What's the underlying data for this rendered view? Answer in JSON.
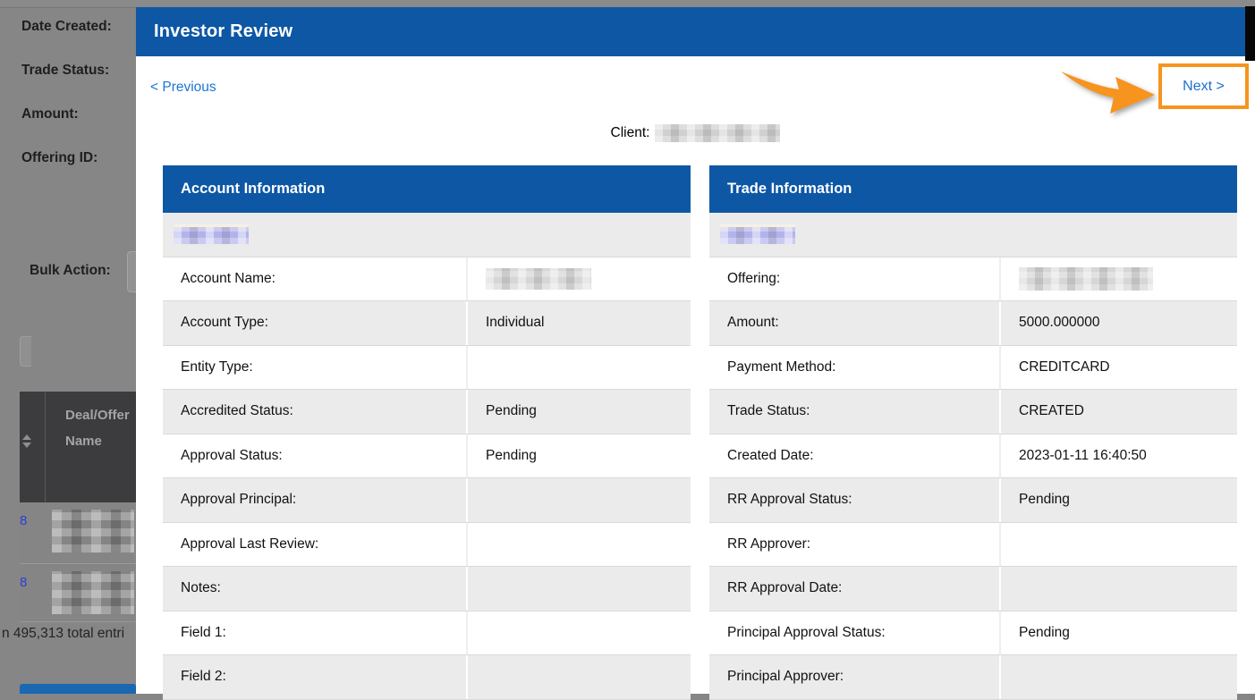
{
  "backdrop": {
    "filter_labels": [
      "Date Created:",
      "Trade Status:",
      "Amount:",
      "Offering ID:"
    ],
    "bulk_action_label": "Bulk Action:",
    "grid": {
      "col_header_line1": "Deal/Offer",
      "col_header_line2": "Name",
      "row_links": [
        "8",
        "8"
      ],
      "total_entries_text": "n 495,313 total entri"
    }
  },
  "modal": {
    "title": "Investor Review",
    "previous_label": "< Previous",
    "next_label": "Next >",
    "client_label": "Client:",
    "tables": [
      {
        "id": "account",
        "title": "Account Information",
        "rows": [
          {
            "type": "link"
          },
          {
            "label": "Account Name:",
            "value": "",
            "redacted_value": true
          },
          {
            "label": "Account Type:",
            "value": "Individual"
          },
          {
            "label": "Entity Type:",
            "value": ""
          },
          {
            "label": "Accredited Status:",
            "value": "Pending"
          },
          {
            "label": "Approval Status:",
            "value": "Pending"
          },
          {
            "label": "Approval Principal:",
            "value": ""
          },
          {
            "label": "Approval Last Review:",
            "value": ""
          },
          {
            "label": "Notes:",
            "value": ""
          },
          {
            "label": "Field 1:",
            "value": ""
          },
          {
            "label": "Field 2:",
            "value": ""
          }
        ]
      },
      {
        "id": "trade",
        "title": "Trade Information",
        "rows": [
          {
            "type": "link"
          },
          {
            "label": "Offering:",
            "value": "",
            "redacted_value": true,
            "wide_blur": true
          },
          {
            "label": "Amount:",
            "value": "5000.000000"
          },
          {
            "label": "Payment Method:",
            "value": "CREDITCARD"
          },
          {
            "label": "Trade Status:",
            "value": "CREATED"
          },
          {
            "label": "Created Date:",
            "value": "2023-01-11 16:40:50"
          },
          {
            "label": "RR Approval Status:",
            "value": "Pending"
          },
          {
            "label": "RR Approver:",
            "value": ""
          },
          {
            "label": "RR Approval Date:",
            "value": ""
          },
          {
            "label": "Principal Approval Status:",
            "value": "Pending"
          },
          {
            "label": "Principal Approver:",
            "value": ""
          }
        ]
      }
    ]
  },
  "colors": {
    "brand_blue": "#0d57a5",
    "link_blue": "#1b75d4",
    "annotation_orange": "#f6941e",
    "alt_row_gray": "#ebebeb"
  }
}
